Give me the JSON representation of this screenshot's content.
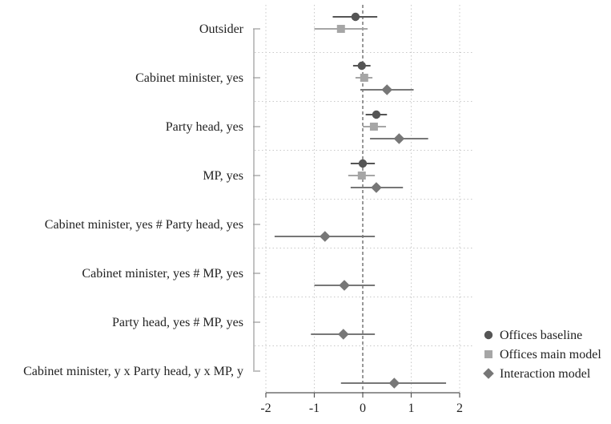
{
  "chart_data": {
    "type": "scatter",
    "subtype": "coefficient-plot-with-confidence-intervals",
    "categories": [
      "Outsider",
      "Cabinet minister, yes",
      "Party head, yes",
      "MP, yes",
      "Cabinet minister, yes # Party head, yes",
      "Cabinet minister, yes # MP, yes",
      "Party head, yes # MP, yes",
      "Cabinet minister, y x Party head, y x MP, y"
    ],
    "x_axis": {
      "range": [
        -2.1,
        2.1
      ],
      "ticks": [
        -2,
        -1,
        0,
        1,
        2
      ],
      "tick_labels": [
        "-2",
        "-1",
        "0",
        "1",
        "2"
      ],
      "reference_line": 0
    },
    "grid": true,
    "legend_position": "right",
    "series": [
      {
        "name": "Offices baseline",
        "marker": "circle",
        "color": "#555555",
        "points": [
          {
            "category": "Outsider",
            "estimate": -0.15,
            "ci": [
              -0.62,
              0.3
            ]
          },
          {
            "category": "Cabinet minister, yes",
            "estimate": -0.02,
            "ci": [
              -0.2,
              0.16
            ]
          },
          {
            "category": "Party head, yes",
            "estimate": 0.28,
            "ci": [
              0.06,
              0.5
            ]
          },
          {
            "category": "MP, yes",
            "estimate": 0.0,
            "ci": [
              -0.25,
              0.25
            ]
          }
        ]
      },
      {
        "name": "Offices main model",
        "marker": "square",
        "color": "#a6a6a6",
        "points": [
          {
            "category": "Outsider",
            "estimate": -0.45,
            "ci": [
              -1.0,
              0.1
            ]
          },
          {
            "category": "Cabinet minister, yes",
            "estimate": 0.03,
            "ci": [
              -0.15,
              0.2
            ]
          },
          {
            "category": "Party head, yes",
            "estimate": 0.23,
            "ci": [
              0.0,
              0.48
            ]
          },
          {
            "category": "MP, yes",
            "estimate": -0.02,
            "ci": [
              -0.3,
              0.25
            ]
          }
        ]
      },
      {
        "name": "Interaction model",
        "marker": "diamond",
        "color": "#777777",
        "points": [
          {
            "category": "Cabinet minister, yes",
            "estimate": 0.5,
            "ci": [
              -0.05,
              1.05
            ]
          },
          {
            "category": "Party head, yes",
            "estimate": 0.75,
            "ci": [
              0.15,
              1.35
            ]
          },
          {
            "category": "MP, yes",
            "estimate": 0.28,
            "ci": [
              -0.25,
              0.83
            ]
          },
          {
            "category": "Cabinet minister, yes # Party head, yes",
            "estimate": -0.78,
            "ci": [
              -1.82,
              0.25
            ]
          },
          {
            "category": "Cabinet minister, yes # MP, yes",
            "estimate": -0.38,
            "ci": [
              -1.0,
              0.25
            ]
          },
          {
            "category": "Party head, yes # MP, yes",
            "estimate": -0.4,
            "ci": [
              -1.07,
              0.25
            ]
          },
          {
            "category": "Cabinet minister, y x Party head, y x MP, y",
            "estimate": 0.65,
            "ci": [
              -0.45,
              1.72
            ]
          }
        ]
      }
    ]
  }
}
